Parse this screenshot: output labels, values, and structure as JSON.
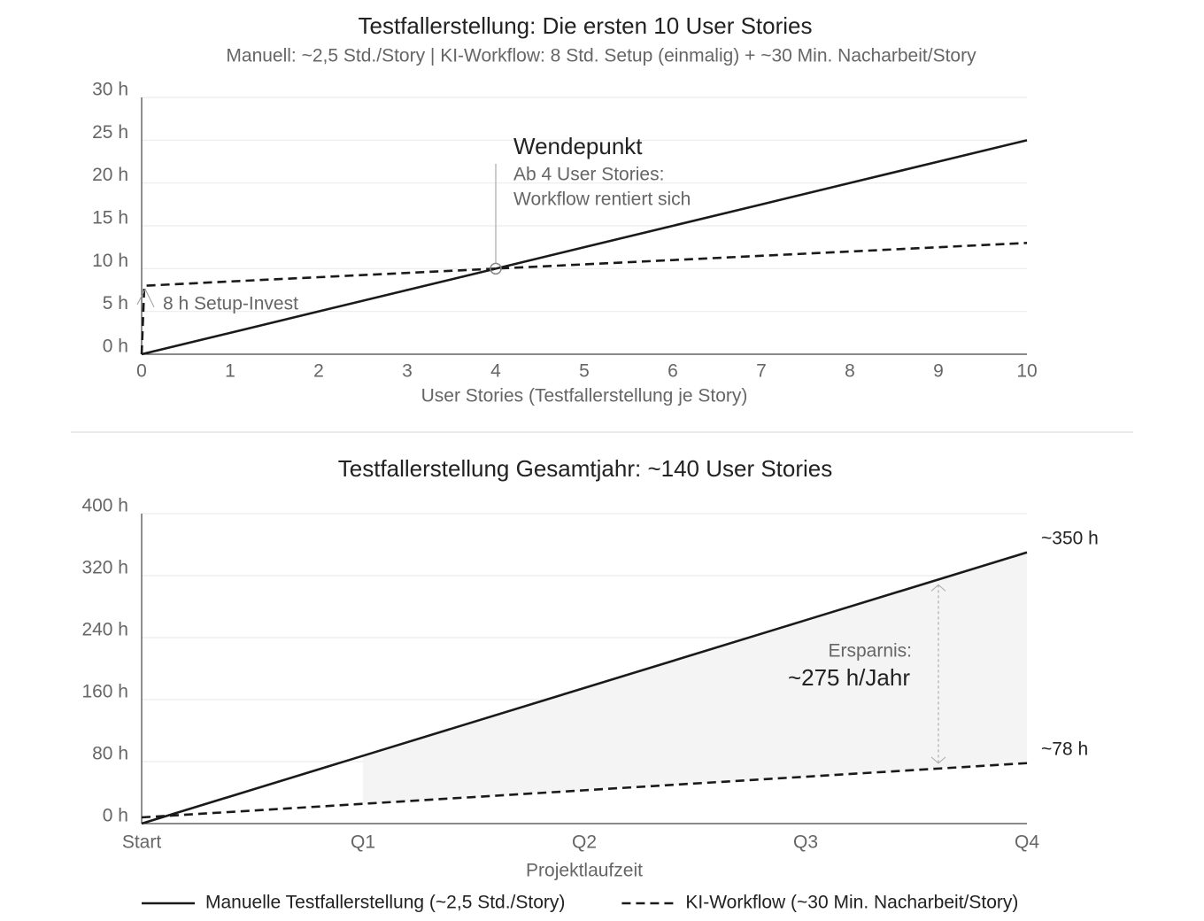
{
  "chart_data": [
    {
      "type": "line",
      "title": "Testfallerstellung: Die ersten 10 User Stories",
      "subtitle": "Manuell: ~2,5 Std./Story | KI-Workflow: 8 Std. Setup (einmalig) + ~30 Min. Nacharbeit/Story",
      "x_label": "User Stories (Testfallerstellung je Story)",
      "x": [
        0,
        1,
        2,
        3,
        4,
        5,
        6,
        7,
        8,
        9,
        10
      ],
      "xlim": [
        0,
        10
      ],
      "xticks": [
        0,
        1,
        2,
        3,
        4,
        5,
        6,
        7,
        8,
        9,
        10
      ],
      "ylim": [
        0,
        30
      ],
      "yticks": [
        {
          "value": 0,
          "label": "0 h"
        },
        {
          "value": 5,
          "label": "5 h"
        },
        {
          "value": 10,
          "label": "10 h"
        },
        {
          "value": 15,
          "label": "15 h"
        },
        {
          "value": 20,
          "label": "20 h"
        },
        {
          "value": 25,
          "label": "25 h"
        },
        {
          "value": 30,
          "label": "30 h"
        }
      ],
      "grid": true,
      "series": [
        {
          "color": "#1a1a1a",
          "dash": "solid",
          "values": [
            0,
            2.5,
            5,
            7.5,
            10,
            12.5,
            15,
            17.5,
            20,
            22.5,
            25
          ]
        },
        {
          "color": "#1a1a1a",
          "dash": "dashed",
          "x": [
            0,
            0.03,
            1,
            2,
            3,
            4,
            5,
            6,
            7,
            8,
            9,
            10
          ],
          "values": [
            0,
            8,
            8.5,
            9,
            9.5,
            10,
            10.5,
            11,
            11.5,
            12,
            12.5,
            13
          ]
        }
      ],
      "break_even": {
        "x": 4,
        "y": 10,
        "title": "Wendepunkt",
        "lines": [
          "Ab 4 User Stories:",
          "Workflow rentiert sich"
        ]
      },
      "setup_label": "8 h Setup-Invest"
    },
    {
      "type": "line",
      "title": "Testfallerstellung Gesamtjahr: ~140 User Stories",
      "x_label": "Projektlaufzeit",
      "categories": [
        "Start",
        "Q1",
        "Q2",
        "Q3",
        "Q4"
      ],
      "ylim": [
        0,
        400
      ],
      "yticks": [
        {
          "value": 0,
          "label": "0 h"
        },
        {
          "value": 80,
          "label": "80 h"
        },
        {
          "value": 160,
          "label": "160 h"
        },
        {
          "value": 240,
          "label": "240 h"
        },
        {
          "value": 320,
          "label": "320 h"
        },
        {
          "value": 400,
          "label": "400 h"
        }
      ],
      "grid": true,
      "series": [
        {
          "name": "Manuelle Testfallerstellung (~2,5 Std./Story)",
          "color": "#1a1a1a",
          "dash": "solid",
          "values": [
            0,
            87.5,
            175,
            262.5,
            350
          ],
          "end_label": "~350 h"
        },
        {
          "name": "KI-Workflow (~30 Min. Nacharbeit/Story)",
          "color": "#1a1a1a",
          "dash": "dashed",
          "values": [
            8,
            25.5,
            43,
            60.5,
            78
          ],
          "end_label": "~78 h"
        }
      ],
      "savings": {
        "label": "Ersparnis:",
        "value_text": "~275 h/Jahr"
      }
    }
  ]
}
